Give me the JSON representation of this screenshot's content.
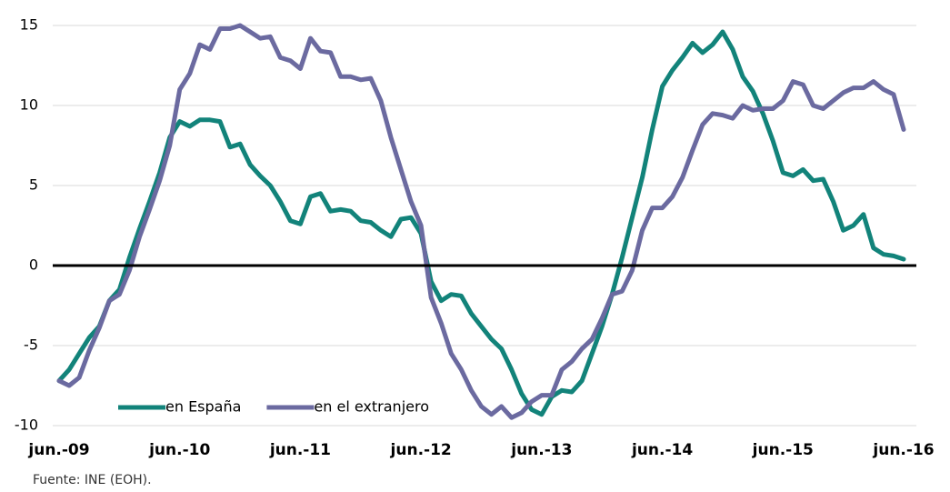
{
  "chart_data": {
    "type": "line",
    "categories": [
      "jun.-09",
      null,
      null,
      null,
      null,
      null,
      null,
      null,
      null,
      null,
      null,
      null,
      "jun.-10",
      null,
      null,
      null,
      null,
      null,
      null,
      null,
      null,
      null,
      null,
      null,
      "jun.-11",
      null,
      null,
      null,
      null,
      null,
      null,
      null,
      null,
      null,
      null,
      null,
      "jun.-12",
      null,
      null,
      null,
      null,
      null,
      null,
      null,
      null,
      null,
      null,
      null,
      "jun.-13",
      null,
      null,
      null,
      null,
      null,
      null,
      null,
      null,
      null,
      null,
      null,
      "jun.-14",
      null,
      null,
      null,
      null,
      null,
      null,
      null,
      null,
      null,
      null,
      null,
      "jun.-15",
      null,
      null,
      null,
      null,
      null,
      null,
      null,
      null,
      null,
      null,
      null,
      "jun.-16"
    ],
    "series": [
      {
        "name": "en España",
        "color": "#12837a",
        "values": [
          -7.2,
          -6.5,
          -5.5,
          -4.5,
          -3.8,
          -2.2,
          -1.5,
          0.5,
          2.3,
          4,
          5.8,
          8,
          9,
          8.7,
          9.1,
          9.1,
          9,
          7.4,
          7.6,
          6.3,
          5.6,
          5,
          4,
          2.8,
          2.6,
          4.3,
          4.5,
          3.4,
          3.5,
          3.4,
          2.8,
          2.7,
          2.2,
          1.8,
          2.9,
          3,
          2,
          -1,
          -2.2,
          -1.8,
          -1.9,
          -3,
          -3.8,
          -4.6,
          -5.2,
          -6.5,
          -8,
          -9,
          -9.3,
          -8.2,
          -7.8,
          -7.9,
          -7.2,
          -5.5,
          -3.8,
          -1.8,
          0.5,
          3,
          5.5,
          8.5,
          11.2,
          12.2,
          13,
          13.9,
          13.3,
          13.8,
          14.6,
          13.5,
          11.8,
          10.9,
          9.5,
          7.8,
          5.8,
          5.6,
          6,
          5.3,
          5.4,
          4,
          2.2,
          2.5,
          3.2,
          1.1,
          0.7,
          0.6,
          0.4
        ]
      },
      {
        "name": "en el extranjero",
        "color": "#6b6aa0",
        "values": [
          -7.2,
          -7.5,
          -7,
          -5.3,
          -3.9,
          -2.2,
          -1.8,
          -0.3,
          1.8,
          3.5,
          5.3,
          7.5,
          11,
          12,
          13.8,
          13.5,
          14.8,
          14.8,
          15,
          14.6,
          14.2,
          14.3,
          13,
          12.8,
          12.3,
          14.2,
          13.4,
          13.3,
          11.8,
          11.8,
          11.6,
          11.7,
          10.3,
          8,
          6,
          4,
          2.5,
          -2,
          -3.6,
          -5.5,
          -6.5,
          -7.8,
          -8.8,
          -9.3,
          -8.8,
          -9.5,
          -9.2,
          -8.5,
          -8.1,
          -8.1,
          -6.5,
          -6,
          -5.2,
          -4.6,
          -3.3,
          -1.8,
          -1.6,
          -0.3,
          2.2,
          3.6,
          3.6,
          4.3,
          5.5,
          7.2,
          8.8,
          9.5,
          9.4,
          9.2,
          10,
          9.7,
          9.8,
          9.8,
          10.3,
          11.5,
          11.3,
          10,
          9.8,
          10.3,
          10.8,
          11.1,
          11.1,
          11.5,
          11,
          10.7,
          8.5
        ]
      }
    ],
    "ylim": [
      -10,
      15
    ],
    "yticks": [
      -10,
      -5,
      0,
      5,
      10,
      15
    ],
    "grid": true,
    "legend": "lower left",
    "source": "Fuente: INE (EOH)."
  }
}
